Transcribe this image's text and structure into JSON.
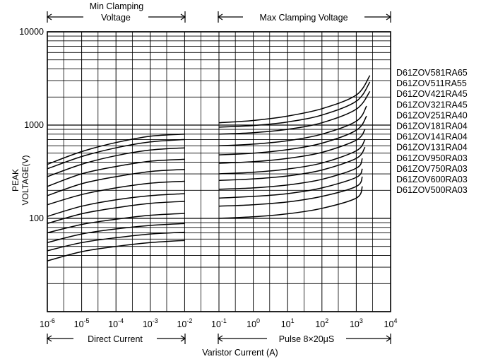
{
  "chart_data": {
    "type": "line",
    "title": "",
    "xlabel": "Varistor Current (A)",
    "ylabel_lines": [
      "PEAK",
      "VOLTAGE(V)"
    ],
    "x_scale": "log",
    "y_scale": "log",
    "xlim": [
      1e-06,
      10000
    ],
    "ylim": [
      10,
      10000
    ],
    "grid": true,
    "x_tick_labels": [
      {
        "base": "10",
        "exp": "-6",
        "value": 1e-06
      },
      {
        "base": "10",
        "exp": "-5",
        "value": 1e-05
      },
      {
        "base": "10",
        "exp": "-4",
        "value": 0.0001
      },
      {
        "base": "10",
        "exp": "-3",
        "value": 0.001
      },
      {
        "base": "10",
        "exp": "-2",
        "value": 0.01
      },
      {
        "base": "10",
        "exp": "-1",
        "value": 0.1
      },
      {
        "base": "10",
        "exp": "0",
        "value": 1
      },
      {
        "base": "10",
        "exp": "1",
        "value": 10
      },
      {
        "base": "10",
        "exp": "2",
        "value": 100
      },
      {
        "base": "10",
        "exp": "3",
        "value": 1000
      },
      {
        "base": "10",
        "exp": "4",
        "value": 10000
      }
    ],
    "y_tick_labels": [
      {
        "text": "10000",
        "value": 10000
      },
      {
        "text": "1000",
        "value": 1000
      },
      {
        "text": "100",
        "value": 100
      }
    ],
    "annotations": {
      "min_title": "Min  Clamping",
      "min_sub": "Voltage",
      "max_title": "Max  Clamping Voltage",
      "direct": "Direct Current",
      "pulse": "Pulse  8×20μS"
    },
    "series": [
      {
        "name": "D61ZOV581RA65",
        "min_dc": {
          "x": [
            1e-06,
            1e-05,
            0.0001,
            0.001,
            0.01
          ],
          "y": [
            380,
            520,
            650,
            760,
            800
          ]
        },
        "max_pulse": {
          "x": [
            0.1,
            1,
            10,
            100,
            1000,
            2500
          ],
          "y": [
            1060,
            1120,
            1250,
            1500,
            2100,
            3400
          ]
        }
      },
      {
        "name": "D61ZOV511RA55",
        "min_dc": {
          "x": [
            1e-06,
            1e-05,
            0.0001,
            0.001,
            0.01
          ],
          "y": [
            340,
            460,
            570,
            660,
            700
          ]
        },
        "max_pulse": {
          "x": [
            0.1,
            1,
            10,
            100,
            1000,
            2500
          ],
          "y": [
            950,
            990,
            1080,
            1280,
            1800,
            2900
          ]
        }
      },
      {
        "name": "D61ZOV421RA45",
        "min_dc": {
          "x": [
            1e-06,
            1e-05,
            0.0001,
            0.001,
            0.01
          ],
          "y": [
            280,
            380,
            470,
            540,
            570
          ]
        },
        "max_pulse": {
          "x": [
            0.1,
            1,
            10,
            100,
            1000,
            2500
          ],
          "y": [
            800,
            830,
            900,
            1060,
            1480,
            2300
          ]
        }
      },
      {
        "name": "D61ZOV321RA45",
        "min_dc": {
          "x": [
            1e-06,
            1e-05,
            0.0001,
            0.001,
            0.01
          ],
          "y": [
            220,
            300,
            360,
            410,
            430
          ]
        },
        "max_pulse": {
          "x": [
            0.1,
            1,
            10,
            100,
            1000,
            2000
          ],
          "y": [
            600,
            625,
            680,
            800,
            1100,
            1600
          ]
        }
      },
      {
        "name": "D61ZOV251RA40",
        "min_dc": {
          "x": [
            1e-06,
            1e-05,
            0.0001,
            0.001,
            0.01
          ],
          "y": [
            175,
            235,
            280,
            318,
            335
          ]
        },
        "max_pulse": {
          "x": [
            0.1,
            1,
            10,
            100,
            1000,
            2000
          ],
          "y": [
            480,
            500,
            545,
            640,
            880,
            1250
          ]
        }
      },
      {
        "name": "D61ZOV181RA04",
        "min_dc": {
          "x": [
            1e-06,
            1e-05,
            0.0001,
            0.001,
            0.01
          ],
          "y": [
            140,
            180,
            212,
            238,
            250
          ]
        },
        "max_pulse": {
          "x": [
            0.1,
            1,
            10,
            100,
            1000,
            1800
          ],
          "y": [
            390,
            405,
            440,
            510,
            690,
            900
          ]
        }
      },
      {
        "name": "D61ZOV141RA04",
        "min_dc": {
          "x": [
            1e-06,
            1e-05,
            0.0001,
            0.001,
            0.01
          ],
          "y": [
            105,
            135,
            158,
            175,
            184
          ]
        },
        "max_pulse": {
          "x": [
            0.1,
            1,
            10,
            100,
            1000,
            1800
          ],
          "y": [
            300,
            312,
            338,
            392,
            530,
            700
          ]
        }
      },
      {
        "name": "D61ZOV131RA04",
        "min_dc": {
          "x": [
            1e-06,
            1e-05,
            0.0001,
            0.001,
            0.01
          ],
          "y": [
            88,
            112,
            130,
            145,
            152
          ]
        },
        "max_pulse": {
          "x": [
            0.1,
            1,
            10,
            100,
            1000,
            1800
          ],
          "y": [
            255,
            265,
            285,
            330,
            440,
            580
          ]
        }
      },
      {
        "name": "D61ZOV950RA03",
        "min_dc": {
          "x": [
            1e-06,
            1e-05,
            0.0001,
            0.001,
            0.01
          ],
          "y": [
            70,
            86,
            98,
            108,
            113
          ]
        },
        "max_pulse": {
          "x": [
            0.1,
            1,
            10,
            100,
            1000,
            1500
          ],
          "y": [
            205,
            212,
            228,
            262,
            345,
            440
          ]
        }
      },
      {
        "name": "D61ZOV750RA03",
        "min_dc": {
          "x": [
            1e-06,
            1e-05,
            0.0001,
            0.001,
            0.01
          ],
          "y": [
            55,
            68,
            77,
            84,
            88
          ]
        },
        "max_pulse": {
          "x": [
            0.1,
            1,
            10,
            100,
            1000,
            1500
          ],
          "y": [
            165,
            172,
            184,
            212,
            275,
            340
          ]
        }
      },
      {
        "name": "D61ZOV600RA03",
        "min_dc": {
          "x": [
            1e-06,
            1e-05,
            0.0001,
            0.001,
            0.01
          ],
          "y": [
            45,
            55,
            62,
            68,
            71
          ]
        },
        "max_pulse": {
          "x": [
            0.1,
            1,
            10,
            100,
            1000,
            1500
          ],
          "y": [
            135,
            140,
            150,
            172,
            220,
            280
          ]
        }
      },
      {
        "name": "D61ZOV500RA03",
        "min_dc": {
          "x": [
            1e-06,
            1e-05,
            0.0001,
            0.001,
            0.01
          ],
          "y": [
            35,
            44,
            50,
            55,
            58
          ]
        },
        "max_pulse": {
          "x": [
            0.1,
            1,
            10,
            100,
            1000,
            1500
          ],
          "y": [
            100,
            104,
            112,
            128,
            165,
            220
          ]
        }
      }
    ]
  }
}
